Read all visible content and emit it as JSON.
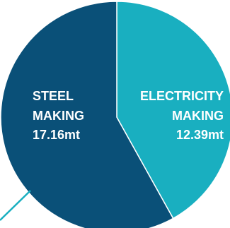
{
  "chart_data": {
    "type": "pie",
    "slices": [
      {
        "label_lines": [
          "STEEL",
          "MAKING",
          "17.16mt"
        ],
        "value": 17.16,
        "color": "#0a5078"
      },
      {
        "label_lines": [
          "ELECTRICITY",
          "MAKING",
          "12.39mt"
        ],
        "value": 12.39,
        "color": "#19afc0"
      }
    ],
    "leader_line_color": "#19afc0"
  }
}
